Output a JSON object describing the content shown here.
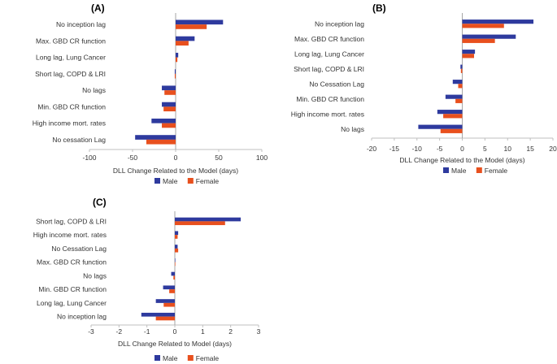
{
  "chart_data": [
    {
      "type": "bar",
      "orientation": "horizontal",
      "panel_label": "(A)",
      "categories": [
        "No inception lag",
        "Max. GBD CR function",
        "Long lag, Lung Cancer",
        "Short lag, COPD & LRI",
        "No lags",
        "Min. GBD CR function",
        "High income mort. rates",
        "No cessation Lag"
      ],
      "series": [
        {
          "name": "Male",
          "values": [
            55,
            22,
            3,
            -1,
            -16,
            -16,
            -28,
            -47
          ]
        },
        {
          "name": "Female",
          "values": [
            36,
            15,
            2,
            -1,
            -13,
            -14,
            -16,
            -34
          ]
        }
      ],
      "xlim": [
        -100,
        100
      ],
      "xticks": [
        "-100",
        "-50",
        "0",
        "50",
        "100"
      ],
      "xtick_values": [
        -100,
        -50,
        0,
        50,
        100
      ],
      "xlabel": "DLL Change Related to the Model (days)",
      "legend": [
        "Male",
        "Female"
      ],
      "colors": {
        "Male": "#2e3a9e",
        "Female": "#e8501e"
      }
    },
    {
      "type": "bar",
      "orientation": "horizontal",
      "panel_label": "(B)",
      "categories": [
        "No inception lag",
        "Max. GBD CR function",
        "Long lag, Lung Cancer",
        "Short lag, COPD & LRI",
        "No Cessation Lag",
        "Min. GBD CR function",
        "High income mort. rates",
        "No lags"
      ],
      "series": [
        {
          "name": "Male",
          "values": [
            15.7,
            11.8,
            2.8,
            -0.4,
            -2.1,
            -3.7,
            -5.5,
            -9.7
          ]
        },
        {
          "name": "Female",
          "values": [
            9.2,
            7.2,
            2.6,
            -0.3,
            -0.9,
            -1.5,
            -4.2,
            -4.8
          ]
        }
      ],
      "xlim": [
        -20,
        20
      ],
      "xticks": [
        "-20",
        "-15",
        "-10",
        "-5",
        "0",
        "5",
        "10",
        "15",
        "20"
      ],
      "xtick_values": [
        -20,
        -15,
        -10,
        -5,
        0,
        5,
        10,
        15,
        20
      ],
      "xlabel": "DLL Change Related to the Model (days)",
      "legend": [
        "Male",
        "Female"
      ],
      "colors": {
        "Male": "#2e3a9e",
        "Female": "#e8501e"
      }
    },
    {
      "type": "bar",
      "orientation": "horizontal",
      "panel_label": "(C)",
      "categories": [
        "Short lag, COPD & LRI",
        "High income mort. rates",
        "No Cessation Lag",
        "Max. GBD CR function",
        "No lags",
        "Min. GBD CR function",
        "Long lag, Lung Cancer",
        "No inception lag"
      ],
      "series": [
        {
          "name": "Male",
          "values": [
            2.36,
            0.12,
            0.1,
            0.01,
            -0.13,
            -0.42,
            -0.68,
            -1.2
          ]
        },
        {
          "name": "Female",
          "values": [
            1.8,
            0.1,
            0.12,
            0.0,
            -0.05,
            -0.2,
            -0.4,
            -0.68
          ]
        }
      ],
      "xlim": [
        -3,
        3
      ],
      "xticks": [
        "-3",
        "-2",
        "-1",
        "0",
        "1",
        "2",
        "3"
      ],
      "xtick_values": [
        -3,
        -2,
        -1,
        0,
        1,
        2,
        3
      ],
      "xlabel": "DLL Change Related to Model (days)",
      "legend": [
        "Male",
        "Female"
      ],
      "colors": {
        "Male": "#2e3a9e",
        "Female": "#e8501e"
      }
    }
  ]
}
